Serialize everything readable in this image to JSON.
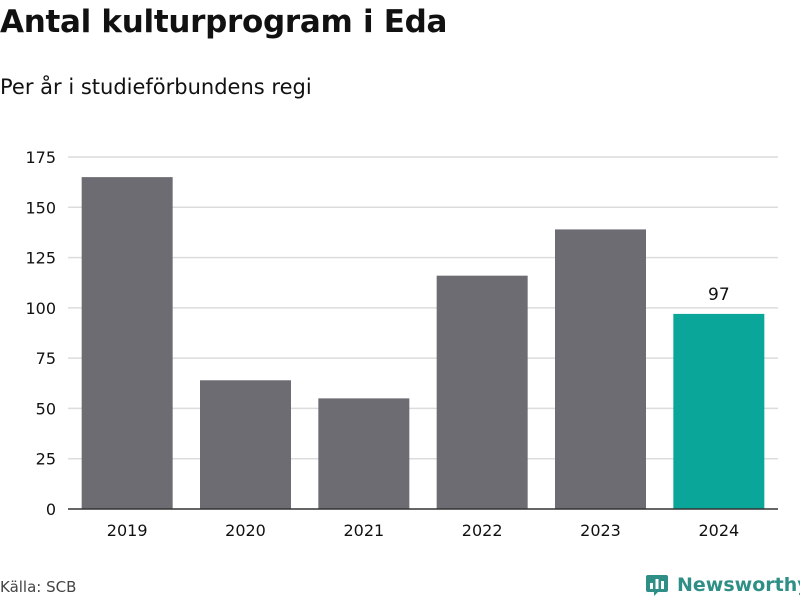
{
  "title": "Antal kulturprogram i Eda",
  "subtitle": "Per år i studieförbundens regi",
  "source": "Källa: SCB",
  "brand": {
    "name": "Newsworthy",
    "icon": "newsworthy-logo-icon"
  },
  "colors": {
    "bar": "#6d6c72",
    "highlight": "#0aa699",
    "grid": "#dcdcdc",
    "axis": "#333333",
    "text": "#111111",
    "brand": "#2f8f87"
  },
  "chart_data": {
    "type": "bar",
    "categories": [
      "2019",
      "2020",
      "2021",
      "2022",
      "2023",
      "2024"
    ],
    "values": [
      165,
      64,
      55,
      116,
      139,
      97
    ],
    "highlight_index": 5,
    "data_labels": [
      {
        "index": 5,
        "text": "97"
      }
    ],
    "y_ticks": [
      0,
      25,
      50,
      75,
      100,
      125,
      150,
      175
    ],
    "ylim": [
      0,
      175
    ],
    "grid": true,
    "legend": "none",
    "xlabel": "",
    "ylabel": ""
  }
}
